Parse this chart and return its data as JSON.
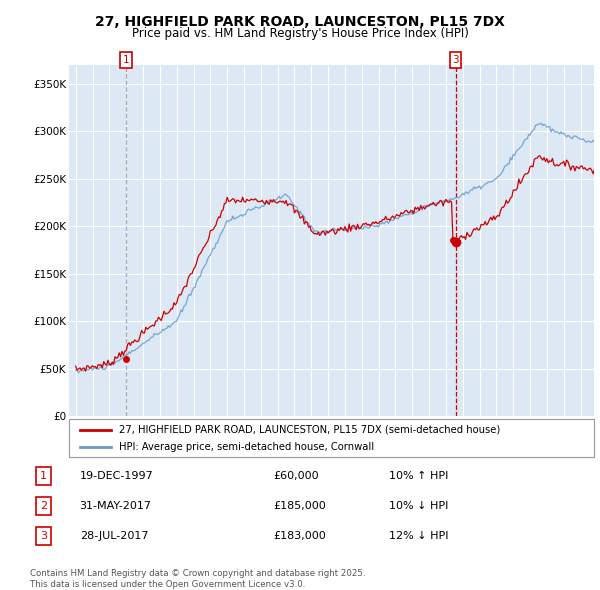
{
  "title_line1": "27, HIGHFIELD PARK ROAD, LAUNCESTON, PL15 7DX",
  "title_line2": "Price paid vs. HM Land Registry's House Price Index (HPI)",
  "legend_label1": "27, HIGHFIELD PARK ROAD, LAUNCESTON, PL15 7DX (semi-detached house)",
  "legend_label2": "HPI: Average price, semi-detached house, Cornwall",
  "transactions": [
    {
      "num": 1,
      "date": "19-DEC-1997",
      "price": 60000,
      "pct": "10%",
      "dir": "↑",
      "x_year": 1997.97
    },
    {
      "num": 2,
      "date": "31-MAY-2017",
      "price": 185000,
      "pct": "10%",
      "dir": "↓",
      "x_year": 2017.41
    },
    {
      "num": 3,
      "date": "28-JUL-2017",
      "price": 183000,
      "pct": "12%",
      "dir": "↓",
      "x_year": 2017.57
    }
  ],
  "vline1_color": "#aaaaaa",
  "vline3_color": "#cc0000",
  "price_line_color": "#cc0000",
  "hpi_line_color": "#6699cc",
  "chart_bg_color": "#dde8f5",
  "grid_color": "#ffffff",
  "ylim": [
    0,
    370000
  ],
  "xlim_start": 1994.6,
  "xlim_end": 2025.8,
  "yticks": [
    0,
    50000,
    100000,
    150000,
    200000,
    250000,
    300000,
    350000
  ],
  "ytick_labels": [
    "£0",
    "£50K",
    "£100K",
    "£150K",
    "£200K",
    "£250K",
    "£300K",
    "£350K"
  ],
  "xticks": [
    1995,
    1996,
    1997,
    1998,
    1999,
    2000,
    2001,
    2002,
    2003,
    2004,
    2005,
    2006,
    2007,
    2008,
    2009,
    2010,
    2011,
    2012,
    2013,
    2014,
    2015,
    2016,
    2017,
    2018,
    2019,
    2020,
    2021,
    2022,
    2023,
    2024,
    2025
  ],
  "footer_text": "Contains HM Land Registry data © Crown copyright and database right 2025.\nThis data is licensed under the Open Government Licence v3.0."
}
